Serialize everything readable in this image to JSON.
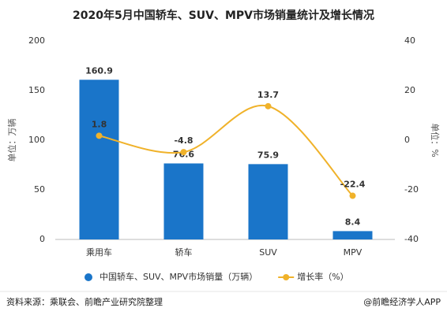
{
  "chart_data": {
    "type": "bar_line",
    "title": "2020年5月中国轿车、SUV、MPV市场销量统计及增长情况",
    "categories": [
      "乘用车",
      "轿车",
      "SUV",
      "MPV"
    ],
    "series": [
      {
        "name": "中国轿车、SUV、MPV市场销量（万辆）",
        "type": "bar",
        "color": "#1a75c9",
        "values": [
          160.9,
          76.6,
          75.9,
          8.4
        ]
      },
      {
        "name": "增长率（%）",
        "type": "line",
        "axis": "y2",
        "color": "#f0b22a",
        "values": [
          1.8,
          -4.8,
          13.7,
          -22.4
        ]
      }
    ],
    "ylabel": "单位：万辆",
    "y2label": "单位：%",
    "ylim": [
      0,
      200
    ],
    "yticks": [
      0,
      50,
      100,
      150,
      200
    ],
    "y2lim": [
      -40,
      40
    ],
    "y2ticks": [
      -40,
      -20,
      0,
      20,
      40
    ],
    "grid": false,
    "source": "资料来源：乘联会、前瞻产业研究院整理",
    "credit": "@前瞻经济学人APP"
  }
}
